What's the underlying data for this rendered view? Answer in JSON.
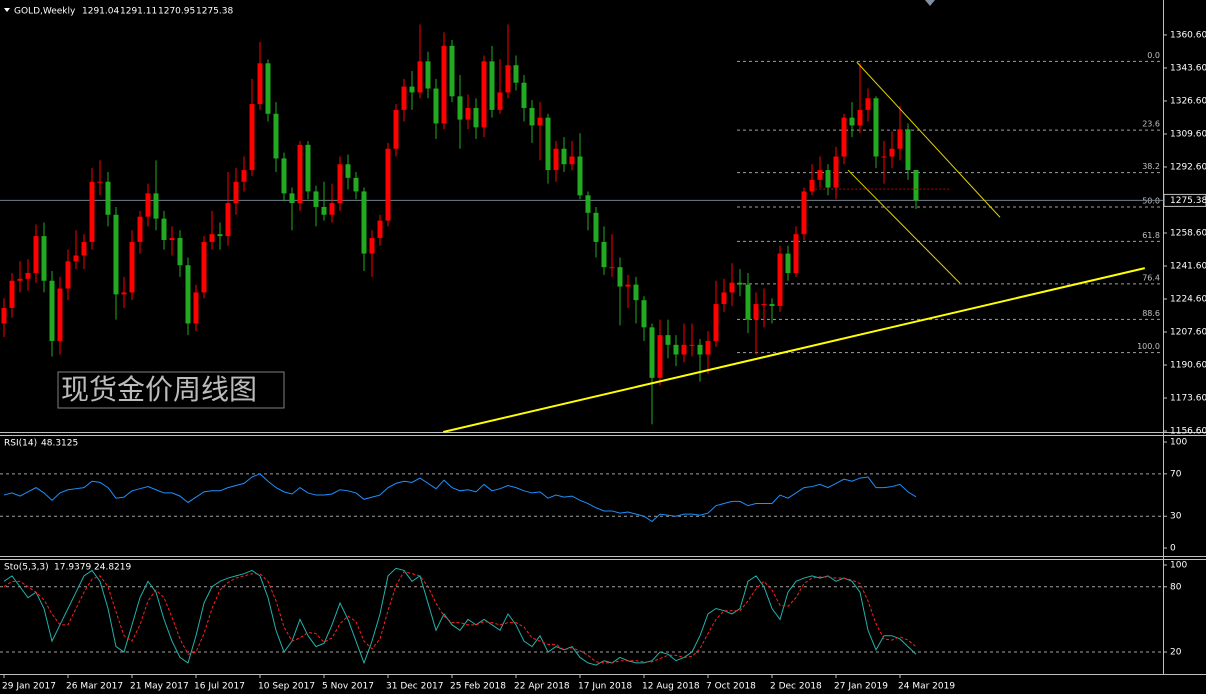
{
  "chart_data": [
    {
      "type": "candlestick",
      "title": "GOLD,Weekly",
      "annotation": "现货金价周线图",
      "categories": [
        "29 Jan 2017",
        null,
        null,
        null,
        null,
        null,
        null,
        null,
        "26 Mar 2017",
        null,
        null,
        null,
        null,
        null,
        null,
        null,
        "21 May 2017",
        null,
        null,
        null,
        null,
        null,
        null,
        null,
        "16 Jul 2017",
        null,
        null,
        null,
        null,
        null,
        null,
        null,
        "10 Sep 2017",
        null,
        null,
        null,
        null,
        null,
        null,
        null,
        "5 Nov 2017",
        null,
        null,
        null,
        null,
        null,
        null,
        null,
        "31 Dec 2017",
        null,
        null,
        null,
        null,
        null,
        null,
        null,
        "25 Feb 2018",
        null,
        null,
        null,
        null,
        null,
        null,
        null,
        "22 Apr 2018",
        null,
        null,
        null,
        null,
        null,
        null,
        null,
        "17 Jun 2018",
        null,
        null,
        null,
        null,
        null,
        null,
        null,
        "12 Aug 2018",
        null,
        null,
        null,
        null,
        null,
        null,
        null,
        "7 Oct 2018",
        null,
        null,
        null,
        null,
        null,
        null,
        null,
        "2 Dec 2018",
        null,
        null,
        null,
        null,
        null,
        null,
        null,
        "27 Jan 2019",
        null,
        null,
        null,
        null,
        null,
        null,
        null,
        "24 Mar 2019",
        null,
        null
      ],
      "open": [
        1212,
        1220,
        1234,
        1235,
        1238,
        1257,
        1234,
        1203,
        1230,
        1244,
        1247,
        1254,
        1285,
        1285,
        1268,
        1227,
        1228,
        1254,
        1267,
        1279,
        1266,
        1255,
        1256,
        1242,
        1212,
        1228,
        1254,
        1258,
        1257,
        1274,
        1285,
        1291,
        1325,
        1346,
        1320,
        1297,
        1279,
        1274,
        1304,
        1280,
        1272,
        1268,
        1274,
        1294,
        1287,
        1280,
        1248,
        1256,
        1265,
        1302,
        1322,
        1334,
        1331,
        1347,
        1333,
        1315,
        1355,
        1329,
        1317,
        1323,
        1313,
        1347,
        1322,
        1331,
        1345,
        1336,
        1323,
        1314,
        1318,
        1291,
        1302,
        1294,
        1298,
        1278,
        1269,
        1254,
        1241,
        1241,
        1231,
        1232,
        1224,
        1210,
        1184,
        1206,
        1201,
        1196,
        1201,
        1201,
        1196,
        1203,
        1222,
        1228,
        1233,
        1232,
        1214,
        1222,
        1222,
        1221,
        1248,
        1238,
        1258,
        1280,
        1286,
        1291,
        1282,
        1298,
        1318,
        1314,
        1322,
        1328,
        1298,
        1298,
        1302,
        1312,
        1291.04
      ],
      "high": [
        1225,
        1238,
        1244,
        1245,
        1263,
        1264,
        1239,
        1236,
        1250,
        1260,
        1258,
        1292,
        1296,
        1290,
        1272,
        1236,
        1260,
        1270,
        1284,
        1296,
        1270,
        1262,
        1260,
        1246,
        1232,
        1257,
        1270,
        1264,
        1290,
        1292,
        1298,
        1338,
        1357,
        1348,
        1326,
        1300,
        1282,
        1306,
        1306,
        1283,
        1285,
        1284,
        1298,
        1299,
        1290,
        1282,
        1260,
        1268,
        1305,
        1325,
        1338,
        1342,
        1366,
        1352,
        1338,
        1362,
        1358,
        1340,
        1330,
        1328,
        1350,
        1355,
        1348,
        1366,
        1350,
        1340,
        1327,
        1326,
        1320,
        1306,
        1308,
        1306,
        1310,
        1280,
        1272,
        1262,
        1258,
        1246,
        1237,
        1236,
        1226,
        1212,
        1214,
        1214,
        1206,
        1212,
        1212,
        1204,
        1208,
        1234,
        1235,
        1243,
        1240,
        1238,
        1228,
        1230,
        1225,
        1252,
        1252,
        1262,
        1282,
        1294,
        1298,
        1294,
        1303,
        1320,
        1326,
        1346,
        1333,
        1329,
        1306,
        1311,
        1324,
        1315,
        1291.11
      ],
      "low": [
        1205,
        1215,
        1228,
        1229,
        1233,
        1228,
        1195,
        1196,
        1224,
        1240,
        1240,
        1250,
        1278,
        1262,
        1214,
        1220,
        1224,
        1248,
        1262,
        1260,
        1250,
        1247,
        1236,
        1206,
        1208,
        1225,
        1250,
        1250,
        1252,
        1268,
        1280,
        1288,
        1322,
        1316,
        1290,
        1275,
        1260,
        1270,
        1276,
        1262,
        1265,
        1264,
        1270,
        1281,
        1276,
        1239,
        1236,
        1252,
        1262,
        1298,
        1316,
        1322,
        1328,
        1328,
        1307,
        1312,
        1326,
        1302,
        1312,
        1307,
        1308,
        1318,
        1320,
        1328,
        1332,
        1316,
        1305,
        1296,
        1284,
        1285,
        1290,
        1291,
        1276,
        1260,
        1246,
        1237,
        1236,
        1211,
        1220,
        1212,
        1203,
        1160,
        1180,
        1194,
        1190,
        1192,
        1195,
        1182,
        1186,
        1200,
        1218,
        1221,
        1226,
        1207,
        1196,
        1210,
        1212,
        1218,
        1234,
        1236,
        1255,
        1278,
        1282,
        1278,
        1276,
        1294,
        1308,
        1310,
        1316,
        1292,
        1284,
        1292,
        1296,
        1286,
        1270.95
      ],
      "close": [
        1220,
        1234,
        1235,
        1238,
        1257,
        1234,
        1203,
        1230,
        1244,
        1247,
        1254,
        1285,
        1285,
        1268,
        1227,
        1228,
        1254,
        1267,
        1279,
        1266,
        1255,
        1256,
        1242,
        1212,
        1228,
        1254,
        1258,
        1257,
        1274,
        1285,
        1291,
        1325,
        1346,
        1320,
        1297,
        1279,
        1274,
        1304,
        1280,
        1272,
        1268,
        1274,
        1294,
        1287,
        1280,
        1248,
        1256,
        1265,
        1302,
        1322,
        1334,
        1331,
        1347,
        1333,
        1315,
        1355,
        1329,
        1317,
        1323,
        1313,
        1347,
        1322,
        1331,
        1345,
        1336,
        1323,
        1314,
        1318,
        1291,
        1302,
        1294,
        1298,
        1278,
        1269,
        1254,
        1241,
        1241,
        1231,
        1232,
        1224,
        1210,
        1184,
        1206,
        1201,
        1196,
        1201,
        1201,
        1196,
        1203,
        1222,
        1228,
        1233,
        1232,
        1214,
        1222,
        1222,
        1221,
        1248,
        1238,
        1258,
        1280,
        1286,
        1291,
        1282,
        1298,
        1318,
        1314,
        1322,
        1328,
        1298,
        1298,
        1302,
        1312,
        1291.04,
        1275.38
      ],
      "up_color": "#ff0000",
      "down_color": "#22aa22",
      "ylim": [
        1156.1,
        1378.6
      ],
      "yticks": [
        {
          "value": 1360.6,
          "label": "1360.60"
        },
        {
          "value": 1343.6,
          "label": "1343.60"
        },
        {
          "value": 1326.6,
          "label": "1326.60"
        },
        {
          "value": 1309.6,
          "label": "1309.60"
        },
        {
          "value": 1292.6,
          "label": "1292.60"
        },
        {
          "value": 1258.6,
          "label": "1258.60"
        },
        {
          "value": 1241.6,
          "label": "1241.60"
        },
        {
          "value": 1224.6,
          "label": "1224.60"
        },
        {
          "value": 1207.6,
          "label": "1207.60"
        },
        {
          "value": 1190.6,
          "label": "1190.60"
        },
        {
          "value": 1173.6,
          "label": "1173.60"
        },
        {
          "value": 1156.6,
          "label": "1156.60"
        }
      ],
      "fib_high": 1347,
      "fib_low": 1197,
      "fib_color": "#a0a0a0",
      "fib_levels": [
        {
          "value": 0,
          "label": "0.0"
        },
        {
          "value": 23.6,
          "label": "23.6"
        },
        {
          "value": 38.2,
          "label": "38.2"
        },
        {
          "value": 50,
          "label": "50.0"
        },
        {
          "value": 61.8,
          "label": "61.8"
        },
        {
          "value": 76.4,
          "label": "76.4"
        },
        {
          "value": 88.6,
          "label": "88.6"
        },
        {
          "value": 100,
          "label": "100.0"
        }
      ],
      "trendlines": [
        {
          "color": "#ffff00",
          "x": [
            54.9,
            142.6
          ],
          "y": [
            1156.1,
            1240.5
          ]
        },
        {
          "color": "#e0d000",
          "x": [
            106.6,
            124.5
          ],
          "y": [
            1346.6,
            1266.7
          ]
        },
        {
          "color": "#e0d000",
          "x": [
            105.5,
            119.5
          ],
          "y": [
            1291,
            1232.7
          ]
        },
        {
          "color": "#cc0000",
          "x": [
            101.4,
            118.3
          ],
          "y": [
            1281.2,
            1281.2
          ]
        }
      ]
    },
    {
      "type": "line",
      "title": "RSI(14)",
      "ylim": [
        -7.5,
        105.7
      ],
      "yticks": [
        100,
        70,
        30,
        0
      ],
      "levels": [
        70,
        30
      ],
      "series": [
        {
          "color": "#1e90ff",
          "values": [
            50,
            52,
            49,
            53,
            57,
            52,
            45,
            52,
            55,
            56,
            57,
            63,
            62,
            57,
            47,
            48,
            54,
            56,
            58,
            55,
            52,
            52,
            49,
            43,
            48,
            53,
            54,
            54,
            57,
            59,
            61,
            67,
            70,
            63,
            57,
            53,
            51,
            57,
            52,
            50,
            50,
            51,
            55,
            54,
            52,
            46,
            48,
            50,
            57,
            61,
            63,
            62,
            66,
            61,
            56,
            64,
            57,
            54,
            55,
            53,
            60,
            54,
            56,
            59,
            57,
            54,
            52,
            53,
            47,
            50,
            48,
            49,
            45,
            42,
            38,
            35,
            35,
            33,
            34,
            32,
            30,
            25,
            32,
            31,
            30,
            32,
            32,
            31,
            33,
            40,
            42,
            44,
            44,
            40,
            42,
            42,
            42,
            50,
            47,
            52,
            57,
            58,
            60,
            57,
            61,
            65,
            63,
            66,
            67,
            57,
            57,
            58,
            60,
            53,
            48.3125
          ]
        }
      ]
    },
    {
      "type": "line",
      "title": "Sto(5,3,3)",
      "ylim": [
        -0.2,
        104.6
      ],
      "yticks": [
        100,
        80,
        20
      ],
      "levels": [
        80,
        20
      ],
      "series": [
        {
          "color": "#20b2aa",
          "values": [
            85,
            90,
            80,
            70,
            75,
            60,
            30,
            45,
            60,
            75,
            90,
            95,
            85,
            60,
            25,
            20,
            45,
            70,
            85,
            75,
            50,
            30,
            15,
            10,
            35,
            65,
            80,
            85,
            88,
            90,
            92,
            95,
            90,
            70,
            40,
            20,
            30,
            50,
            35,
            25,
            28,
            45,
            65,
            50,
            30,
            10,
            30,
            55,
            90,
            97,
            95,
            85,
            90,
            65,
            40,
            55,
            45,
            40,
            50,
            45,
            50,
            45,
            40,
            55,
            45,
            30,
            25,
            35,
            20,
            25,
            22,
            25,
            15,
            10,
            8,
            12,
            10,
            15,
            12,
            10,
            10,
            12,
            20,
            18,
            12,
            15,
            20,
            35,
            55,
            60,
            58,
            55,
            60,
            85,
            90,
            80,
            60,
            50,
            75,
            85,
            88,
            90,
            88,
            90,
            85,
            88,
            85,
            75,
            40,
            22,
            35,
            35,
            32,
            25,
            17.9379
          ]
        },
        {
          "color": "#ff2020",
          "dashed": true,
          "values": [
            80,
            85,
            85,
            80,
            75,
            68,
            55,
            45,
            45,
            60,
            75,
            87,
            90,
            80,
            57,
            35,
            30,
            45,
            67,
            77,
            70,
            52,
            32,
            18,
            20,
            37,
            60,
            77,
            84,
            88,
            90,
            92,
            92,
            85,
            67,
            43,
            30,
            33,
            38,
            37,
            29,
            33,
            46,
            53,
            48,
            30,
            23,
            32,
            58,
            81,
            94,
            92,
            90,
            80,
            65,
            53,
            47,
            47,
            45,
            45,
            48,
            47,
            45,
            47,
            47,
            43,
            33,
            30,
            27,
            27,
            22,
            24,
            21,
            17,
            11,
            10,
            10,
            12,
            12,
            12,
            11,
            11,
            14,
            17,
            17,
            15,
            16,
            23,
            37,
            50,
            58,
            58,
            58,
            67,
            78,
            85,
            77,
            63,
            62,
            70,
            83,
            88,
            89,
            89,
            88,
            88,
            86,
            83,
            67,
            46,
            32,
            31,
            34,
            31,
            24.8219
          ]
        }
      ]
    }
  ]
}
